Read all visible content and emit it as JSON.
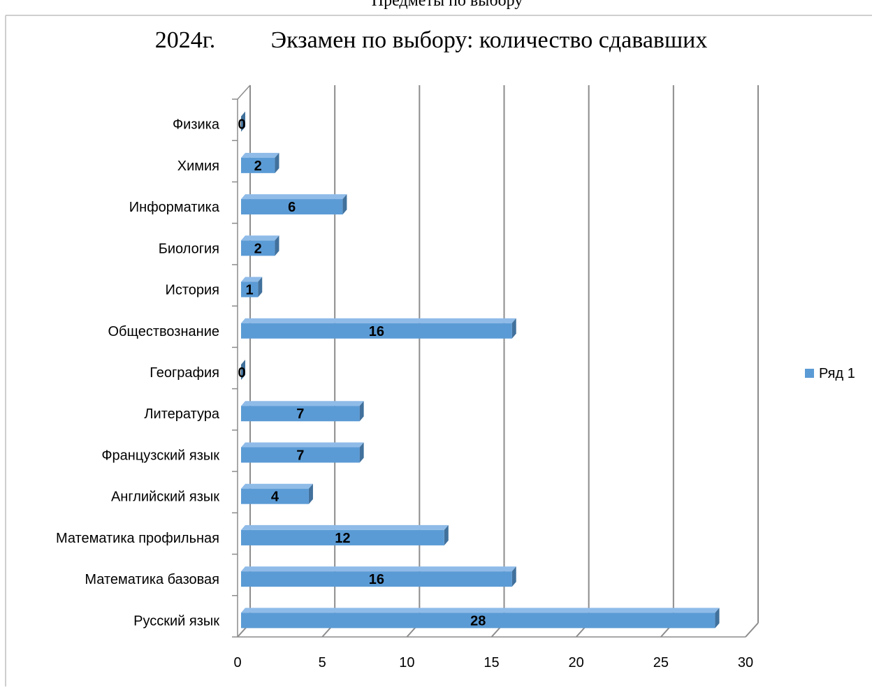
{
  "header": {
    "above_text": "Предметы по выбору",
    "year": "2024г.",
    "title": "Экзамен по выбору: количество сдававших"
  },
  "colors": {
    "bar_front": "#5b9bd5",
    "bar_top": "#8fbbe8",
    "bar_side": "#41719c",
    "grid": "#8c8c8c",
    "text": "#000000"
  },
  "chart_data": {
    "type": "bar",
    "orientation": "horizontal",
    "style": "3d",
    "title": "Экзамен по выбору: количество сдававших",
    "categories": [
      "Русский язык",
      "Математика базовая",
      "Математика профильная",
      "Английский язык",
      "Французский язык",
      "Литература",
      "География",
      "Обществознание",
      "История",
      "Биология",
      "Информатика",
      "Химия",
      "Физика"
    ],
    "series": [
      {
        "name": "Ряд 1",
        "values": [
          28,
          16,
          12,
          4,
          7,
          7,
          0,
          16,
          1,
          2,
          6,
          2,
          0
        ]
      }
    ],
    "data_labels": [
      "28",
      "16",
      "12",
      "4",
      "7",
      "7",
      "0",
      "16",
      "1",
      "2",
      "6",
      "2",
      "0"
    ],
    "xlim": [
      0,
      30
    ],
    "x_ticks": [
      "0",
      "5",
      "10",
      "15",
      "20",
      "25",
      "30"
    ],
    "grid": true,
    "legend_position": "right"
  }
}
